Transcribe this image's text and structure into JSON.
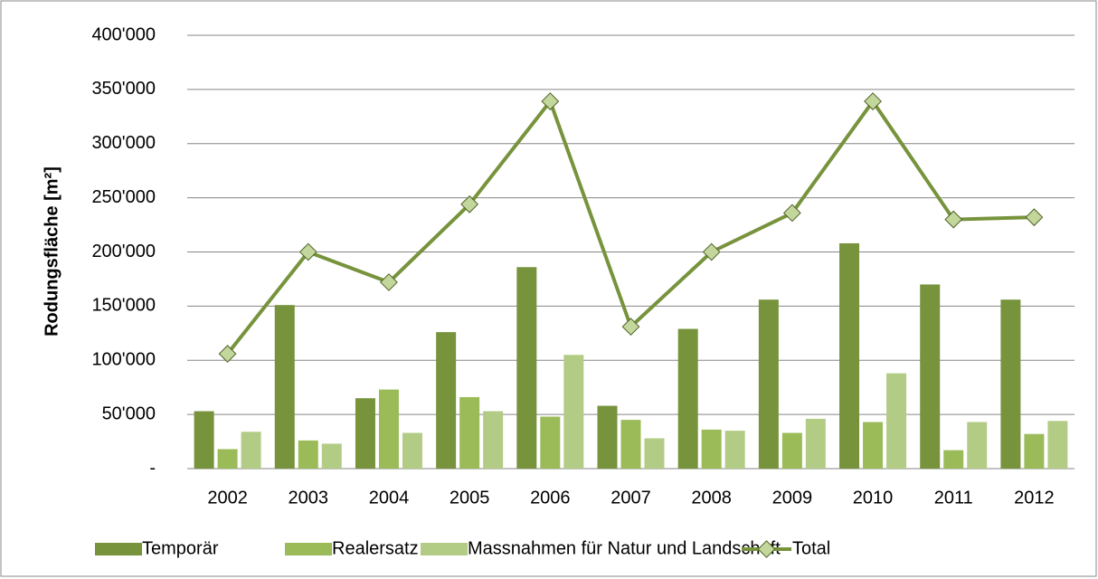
{
  "chart_data": {
    "type": "bar",
    "y_label": "Rodungsfläche [m²]",
    "categories": [
      "2002",
      "2003",
      "2004",
      "2005",
      "2006",
      "2007",
      "2008",
      "2009",
      "2010",
      "2011",
      "2012"
    ],
    "series": [
      {
        "name": "Temporär",
        "color": "#77933c",
        "values": [
          53000,
          151000,
          65000,
          126000,
          186000,
          58000,
          129000,
          156000,
          208000,
          170000,
          156000
        ]
      },
      {
        "name": "Realersatz",
        "color": "#9bbb59",
        "values": [
          18000,
          26000,
          73000,
          66000,
          48000,
          45000,
          36000,
          33000,
          43000,
          17000,
          32000
        ]
      },
      {
        "name": "Massnahmen für Natur und Landschaft",
        "color": "#b3cc85",
        "values": [
          34000,
          23000,
          33000,
          53000,
          105000,
          28000,
          35000,
          46000,
          88000,
          43000,
          44000
        ]
      },
      {
        "name": "Total",
        "type": "line",
        "color": "#77933c",
        "marker_color": "#c3d69b",
        "values": [
          106000,
          200000,
          172000,
          244000,
          339000,
          131000,
          200000,
          236000,
          339000,
          230000,
          232000
        ]
      }
    ],
    "ylim": [
      0,
      400000
    ],
    "yticks": [
      {
        "value": 0,
        "label": "-"
      },
      {
        "value": 50000,
        "label": "50'000"
      },
      {
        "value": 100000,
        "label": "100'000"
      },
      {
        "value": 150000,
        "label": "150'000"
      },
      {
        "value": 200000,
        "label": "200'000"
      },
      {
        "value": 250000,
        "label": "250'000"
      },
      {
        "value": 300000,
        "label": "300'000"
      },
      {
        "value": 350000,
        "label": "350'000"
      },
      {
        "value": 400000,
        "label": "400'000"
      }
    ],
    "grid": true,
    "legend": "bottom"
  }
}
